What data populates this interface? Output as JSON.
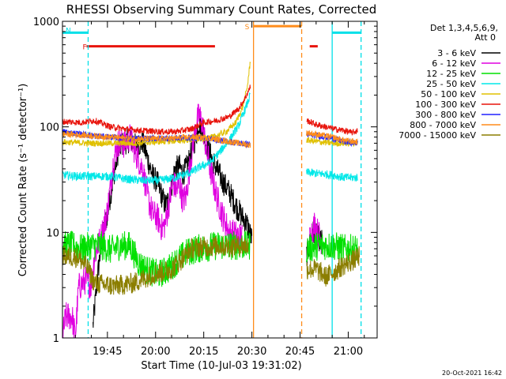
{
  "chart_data": {
    "type": "line",
    "title": "RHESSI Observing Summary Count Rates, Corrected",
    "xlabel": "Start Time (10-Jul-03 19:31:02)",
    "ylabel": "Corrected Count Rate (s⁻¹ detector⁻¹)",
    "y_scale": "log",
    "ylim": [
      1,
      1000
    ],
    "xlim_minutes_after_start": [
      0,
      98
    ],
    "x_unit": "minutes after 19:31:02 UT",
    "x_tick_labels": [
      "19:45",
      "20:00",
      "20:15",
      "20:30",
      "20:45",
      "21:00"
    ],
    "x_tick_minutes": [
      14,
      29,
      44,
      59,
      74,
      89
    ],
    "y_tick_labels": [
      "1",
      "10",
      "100",
      "1000"
    ],
    "y_tick_values": [
      1,
      10,
      100,
      1000
    ],
    "legend_position": "right",
    "legend_header": [
      "Det 1,3,4,5,6,9,",
      "Att 0"
    ],
    "timestamp": "20-Oct-2021 16:42",
    "flags": [
      {
        "letter": "N",
        "color": "#00e0e8",
        "segments": [
          [
            0,
            8
          ],
          [
            84,
            93
          ]
        ],
        "level": 780
      },
      {
        "letter": "F",
        "color": "#e8140c",
        "segments": [
          [
            7.5,
            47.5
          ],
          [
            77,
            79.5
          ]
        ],
        "level": 580
      },
      {
        "letter": "S",
        "color": "#ff8c1a",
        "segments": [
          [
            59.5,
            74.5
          ]
        ],
        "level": 900
      }
    ],
    "vertical_lines": [
      {
        "minute": 8,
        "color": "#00e0e8",
        "style": "dashed"
      },
      {
        "minute": 84,
        "color": "#00e0e8",
        "style": "solid"
      },
      {
        "minute": 93,
        "color": "#00e0e8",
        "style": "dashed"
      },
      {
        "minute": 59.5,
        "color": "#ff8c1a",
        "style": "solid"
      },
      {
        "minute": 74.5,
        "color": "#ff8c1a",
        "style": "dashed"
      }
    ],
    "series": [
      {
        "name": "3 - 6 keV",
        "color": "#000000",
        "noise": 0.12,
        "points": [
          [
            9.5,
            1.3
          ],
          [
            11,
            4
          ],
          [
            12,
            7.5
          ],
          [
            14,
            15
          ],
          [
            16,
            35
          ],
          [
            17.5,
            62
          ],
          [
            19,
            70
          ],
          [
            21,
            75
          ],
          [
            23,
            65
          ],
          [
            25,
            72
          ],
          [
            26.5,
            50
          ],
          [
            28,
            35
          ],
          [
            29.5,
            30
          ],
          [
            31,
            22
          ],
          [
            32,
            18
          ],
          [
            33,
            20
          ],
          [
            34,
            28
          ],
          [
            35,
            40
          ],
          [
            36.5,
            42
          ],
          [
            37.5,
            36
          ],
          [
            38.5,
            40
          ],
          [
            40,
            55
          ],
          [
            41.5,
            80
          ],
          [
            42.5,
            110
          ],
          [
            43.5,
            100
          ],
          [
            44.5,
            75
          ],
          [
            46,
            55
          ],
          [
            48,
            40
          ],
          [
            50,
            30
          ],
          [
            52,
            24
          ],
          [
            54,
            18
          ],
          [
            56,
            14
          ],
          [
            57.5,
            12
          ],
          [
            59,
            8.5
          ]
        ]
      },
      {
        "name": "3 - 6 keV",
        "color": "#000000",
        "noise": 0.12,
        "points": [
          [
            76,
            6
          ],
          [
            78,
            10
          ],
          [
            79.5,
            9
          ],
          [
            81,
            8
          ]
        ]
      },
      {
        "name": "6 - 12 keV",
        "color": "#e000e0",
        "noise": 0.14,
        "points": [
          [
            0,
            1
          ],
          [
            1,
            1.6
          ],
          [
            3,
            1.6
          ],
          [
            4,
            1
          ],
          [
            5,
            3
          ],
          [
            7,
            3.5
          ],
          [
            9,
            3.2
          ],
          [
            10,
            6
          ],
          [
            12,
            9
          ],
          [
            14,
            16
          ],
          [
            16,
            50
          ],
          [
            17.5,
            72
          ],
          [
            19,
            68
          ],
          [
            21,
            80
          ],
          [
            23,
            55
          ],
          [
            25,
            40
          ],
          [
            26.5,
            22
          ],
          [
            28,
            15
          ],
          [
            29.5,
            14
          ],
          [
            31,
            11
          ],
          [
            32,
            12
          ],
          [
            33,
            18
          ],
          [
            34.5,
            30
          ],
          [
            35.5,
            25
          ],
          [
            36.5,
            28
          ],
          [
            37.5,
            20
          ],
          [
            38.5,
            22
          ],
          [
            40,
            50
          ],
          [
            41.5,
            100
          ],
          [
            42.5,
            130
          ],
          [
            43.5,
            110
          ],
          [
            44.5,
            70
          ],
          [
            46,
            40
          ],
          [
            48,
            22
          ],
          [
            50,
            14
          ],
          [
            52,
            10
          ],
          [
            54,
            9.5
          ],
          [
            56,
            9
          ]
        ]
      },
      {
        "name": "6 - 12 keV",
        "color": "#e000e0",
        "noise": 0.14,
        "points": [
          [
            77,
            9
          ],
          [
            78.5,
            12
          ],
          [
            79.5,
            10
          ],
          [
            81,
            8
          ]
        ]
      },
      {
        "name": "12 - 25 keV",
        "color": "#00e000",
        "noise": 0.14,
        "points": [
          [
            0,
            7.5
          ],
          [
            3,
            7.5
          ],
          [
            6,
            7
          ],
          [
            9,
            7.5
          ],
          [
            12,
            7.5
          ],
          [
            15,
            6.8
          ],
          [
            18,
            7.5
          ],
          [
            21,
            7.5
          ],
          [
            24,
            5
          ],
          [
            27,
            4.3
          ],
          [
            30,
            4
          ],
          [
            33,
            4.5
          ],
          [
            36,
            5.5
          ],
          [
            39,
            6.5
          ],
          [
            42,
            7
          ],
          [
            45,
            7.2
          ],
          [
            48,
            7.5
          ],
          [
            51,
            7.5
          ],
          [
            54,
            7.5
          ],
          [
            57,
            7.5
          ],
          [
            58.5,
            7.5
          ]
        ]
      },
      {
        "name": "12 - 25 keV",
        "color": "#00e000",
        "noise": 0.14,
        "points": [
          [
            76,
            7
          ],
          [
            80,
            7.5
          ],
          [
            84,
            7.5
          ],
          [
            88,
            7
          ],
          [
            92,
            7
          ]
        ]
      },
      {
        "name": "25 - 50 keV",
        "color": "#00e8e8",
        "noise": 0.04,
        "points": [
          [
            0,
            35
          ],
          [
            5,
            34
          ],
          [
            10,
            34
          ],
          [
            15,
            34
          ],
          [
            20,
            32
          ],
          [
            25,
            31
          ],
          [
            30,
            31
          ],
          [
            35,
            33
          ],
          [
            40,
            37
          ],
          [
            43,
            42
          ],
          [
            46,
            46
          ],
          [
            49,
            58
          ],
          [
            52,
            75
          ],
          [
            55,
            105
          ],
          [
            57,
            150
          ],
          [
            58.5,
            200
          ]
        ]
      },
      {
        "name": "25 - 50 keV",
        "color": "#00e8e8",
        "noise": 0.04,
        "points": [
          [
            76,
            37
          ],
          [
            80,
            36
          ],
          [
            84,
            35
          ],
          [
            88,
            33
          ],
          [
            92,
            33
          ]
        ]
      },
      {
        "name": "50 - 100 keV",
        "color": "#e0c000",
        "noise": 0.03,
        "points": [
          [
            0,
            72
          ],
          [
            8,
            70
          ],
          [
            15,
            70
          ],
          [
            22,
            70
          ],
          [
            29,
            72
          ],
          [
            36,
            74
          ],
          [
            42,
            76
          ],
          [
            47,
            80
          ],
          [
            51,
            90
          ],
          [
            54,
            110
          ],
          [
            56,
            150
          ],
          [
            57.5,
            230
          ],
          [
            58.5,
            420
          ]
        ]
      },
      {
        "name": "50 - 100 keV",
        "color": "#e0c000",
        "noise": 0.03,
        "points": [
          [
            76,
            75
          ],
          [
            80,
            72
          ],
          [
            84,
            70
          ],
          [
            88,
            70
          ],
          [
            92,
            70
          ]
        ]
      },
      {
        "name": "100 - 300 keV",
        "color": "#e8140c",
        "noise": 0.03,
        "points": [
          [
            0,
            112
          ],
          [
            6,
            110
          ],
          [
            10,
            115
          ],
          [
            15,
            100
          ],
          [
            20,
            95
          ],
          [
            25,
            92
          ],
          [
            30,
            90
          ],
          [
            35,
            90
          ],
          [
            40,
            95
          ],
          [
            44,
            110
          ],
          [
            48,
            115
          ],
          [
            52,
            125
          ],
          [
            55,
            150
          ],
          [
            57,
            190
          ],
          [
            58.5,
            240
          ]
        ]
      },
      {
        "name": "100 - 300 keV",
        "color": "#e8140c",
        "noise": 0.03,
        "points": [
          [
            76,
            115
          ],
          [
            79,
            105
          ],
          [
            82,
            100
          ],
          [
            85,
            95
          ],
          [
            88,
            92
          ],
          [
            90,
            88
          ],
          [
            92,
            92
          ]
        ]
      },
      {
        "name": "300 - 800 keV",
        "color": "#2020ff",
        "noise": 0.03,
        "points": [
          [
            0,
            90
          ],
          [
            5,
            86
          ],
          [
            10,
            82
          ],
          [
            15,
            80
          ],
          [
            20,
            78
          ],
          [
            25,
            77
          ],
          [
            30,
            78
          ],
          [
            35,
            78
          ],
          [
            40,
            79
          ],
          [
            45,
            78
          ],
          [
            50,
            74
          ],
          [
            55,
            70
          ],
          [
            58.5,
            68
          ]
        ]
      },
      {
        "name": "300 - 800 keV",
        "color": "#2020ff",
        "noise": 0.03,
        "points": [
          [
            76,
            85
          ],
          [
            80,
            82
          ],
          [
            84,
            78
          ],
          [
            88,
            72
          ],
          [
            92,
            70
          ]
        ]
      },
      {
        "name": "800 - 7000 keV",
        "color": "#ff8c1a",
        "noise": 0.03,
        "points": [
          [
            0,
            86
          ],
          [
            5,
            84
          ],
          [
            10,
            82
          ],
          [
            15,
            80
          ],
          [
            20,
            78
          ],
          [
            25,
            77
          ],
          [
            30,
            77
          ],
          [
            35,
            78
          ],
          [
            40,
            80
          ],
          [
            45,
            79
          ],
          [
            50,
            74
          ],
          [
            55,
            70
          ],
          [
            58.5,
            67
          ]
        ]
      },
      {
        "name": "800 - 7000 keV",
        "color": "#ff8c1a",
        "noise": 0.03,
        "points": [
          [
            76,
            88
          ],
          [
            80,
            84
          ],
          [
            84,
            80
          ],
          [
            88,
            74
          ],
          [
            92,
            72
          ]
        ]
      },
      {
        "name": "7000 - 15000 keV",
        "color": "#8b7e00",
        "noise": 0.1,
        "points": [
          [
            0,
            6
          ],
          [
            5,
            5.8
          ],
          [
            8,
            4.5
          ],
          [
            10,
            3.3
          ],
          [
            13,
            3.2
          ],
          [
            16,
            3.1
          ],
          [
            19,
            3.2
          ],
          [
            22,
            3.3
          ],
          [
            25,
            3.6
          ],
          [
            28,
            4
          ],
          [
            31,
            4.2
          ],
          [
            34,
            4.5
          ],
          [
            37,
            5.5
          ],
          [
            40,
            7
          ],
          [
            43,
            7.3
          ],
          [
            46,
            7.3
          ],
          [
            49,
            7.5
          ],
          [
            52,
            7.3
          ],
          [
            55,
            7.5
          ],
          [
            58,
            7.5
          ]
        ]
      },
      {
        "name": "7000 - 15000 keV",
        "color": "#8b7e00",
        "noise": 0.1,
        "points": [
          [
            76,
            4.5
          ],
          [
            79,
            4.5
          ],
          [
            82,
            3.8
          ],
          [
            85,
            4.3
          ],
          [
            88,
            5
          ],
          [
            91,
            5.5
          ],
          [
            92.5,
            6
          ]
        ]
      }
    ],
    "legend": [
      {
        "label": "3 - 6 keV",
        "color": "#000000"
      },
      {
        "label": "6 - 12 keV",
        "color": "#e000e0"
      },
      {
        "label": "12 - 25 keV",
        "color": "#00e000"
      },
      {
        "label": "25 - 50 keV",
        "color": "#00e8e8"
      },
      {
        "label": "50 - 100 keV",
        "color": "#e0c000"
      },
      {
        "label": "100 - 300 keV",
        "color": "#e8140c"
      },
      {
        "label": "300 - 800 keV",
        "color": "#2020ff"
      },
      {
        "label": "800 - 7000 keV",
        "color": "#ff8c1a"
      },
      {
        "label": "7000 - 15000 keV",
        "color": "#8b7e00"
      }
    ]
  }
}
